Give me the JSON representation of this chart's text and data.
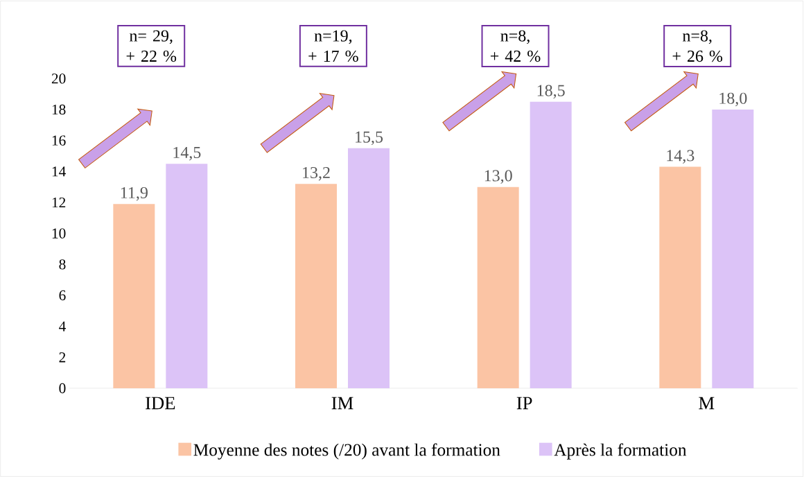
{
  "chart_data": {
    "type": "bar",
    "categories": [
      "IDE",
      "IM",
      "IP",
      "M"
    ],
    "series": [
      {
        "name": "Moyenne des notes (/20) avant la formation",
        "color": "#fbc4a4",
        "values": [
          11.9,
          13.2,
          13.0,
          14.3
        ],
        "value_labels": [
          "11,9",
          "13,2",
          "13,0",
          "14,3"
        ]
      },
      {
        "name": "Après la formation",
        "color": "#dcc3f7",
        "values": [
          14.5,
          15.5,
          18.5,
          18.0
        ],
        "value_labels": [
          "14,5",
          "15,5",
          "18,5",
          "18,0"
        ]
      }
    ],
    "ylim": [
      0,
      20
    ],
    "yticks": [
      0,
      2,
      4,
      6,
      8,
      10,
      12,
      14,
      16,
      18,
      20
    ],
    "grid": false,
    "legend": "bottom",
    "annotations": [
      "n= 29, + 22 %",
      "n=19, + 17 %",
      "n=8, + 42 %",
      "n=8, + 26 %"
    ]
  }
}
